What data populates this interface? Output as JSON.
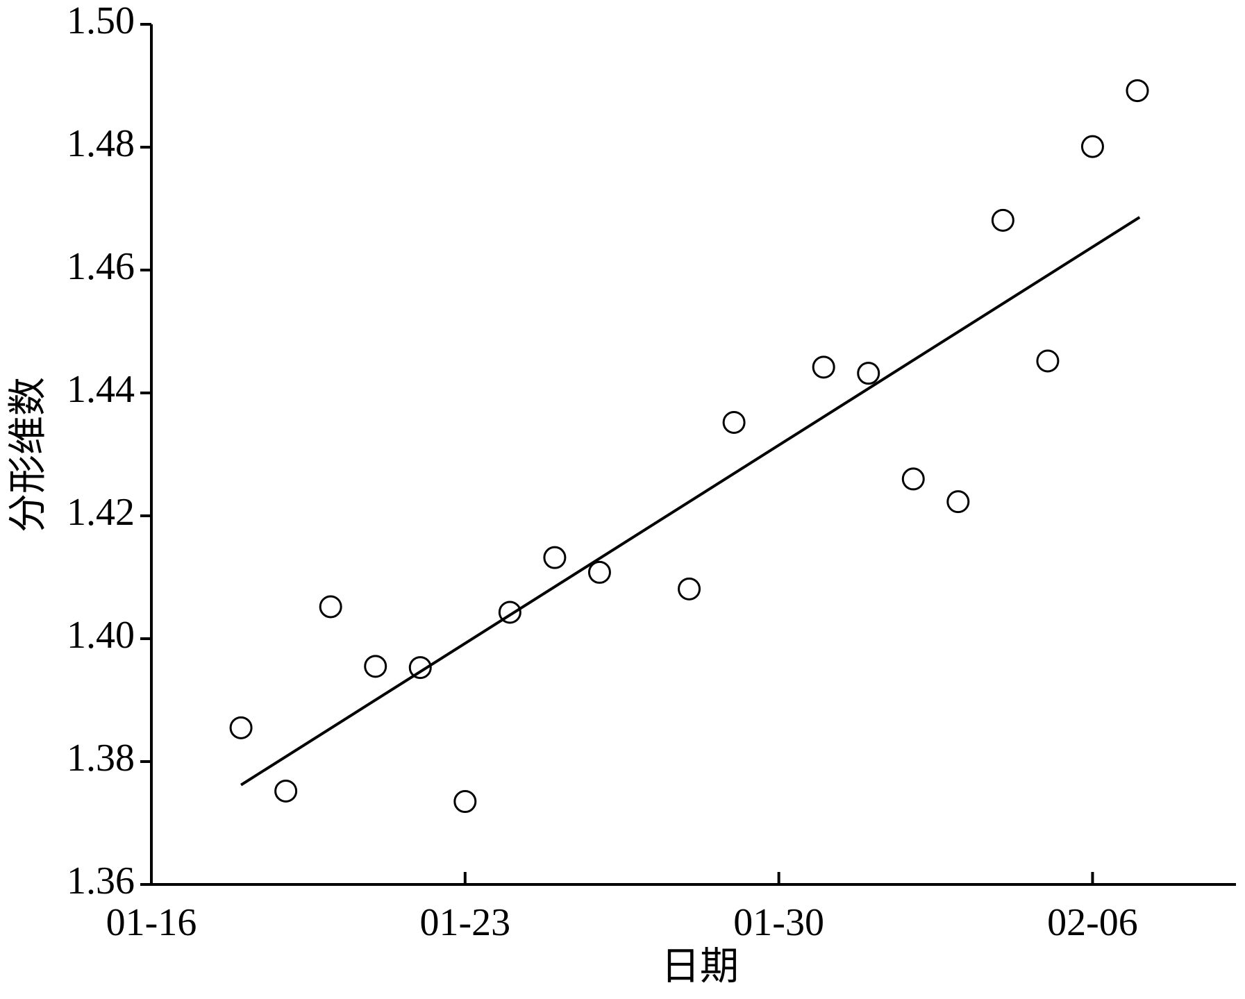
{
  "chart_data": {
    "type": "scatter",
    "x_label": "日期",
    "y_label": "分形维数",
    "x": [
      2,
      3,
      4,
      5,
      6,
      7,
      8,
      9,
      10,
      12,
      13,
      15,
      16,
      17,
      18,
      19,
      20,
      21,
      22
    ],
    "series": [
      {
        "name": "points",
        "color": "#000000",
        "values": [
          1.3855,
          1.3752,
          1.4052,
          1.3955,
          1.3953,
          1.3735,
          1.4043,
          1.4132,
          1.4108,
          1.4081,
          1.4352,
          1.4442,
          1.4432,
          1.426,
          1.4223,
          1.4681,
          1.4452,
          1.4801,
          1.4892
        ]
      }
    ],
    "trend": {
      "x": [
        2,
        22.05
      ],
      "values": [
        1.3762,
        1.4686
      ],
      "color": "#000000"
    },
    "xlim": [
      0,
      24.2
    ],
    "xticks": [
      {
        "value": 0,
        "label": "01-16"
      },
      {
        "value": 7,
        "label": "01-23"
      },
      {
        "value": 14,
        "label": "01-30"
      },
      {
        "value": 21,
        "label": "02-06"
      }
    ],
    "ylim": [
      1.36,
      1.5
    ],
    "yticks": [
      {
        "value": 1.36,
        "label": "1.36"
      },
      {
        "value": 1.38,
        "label": "1.38"
      },
      {
        "value": 1.4,
        "label": "1.40"
      },
      {
        "value": 1.42,
        "label": "1.42"
      },
      {
        "value": 1.44,
        "label": "1.44"
      },
      {
        "value": 1.46,
        "label": "1.46"
      },
      {
        "value": 1.48,
        "label": "1.48"
      },
      {
        "value": 1.5,
        "label": "1.50"
      }
    ],
    "grid": false
  }
}
